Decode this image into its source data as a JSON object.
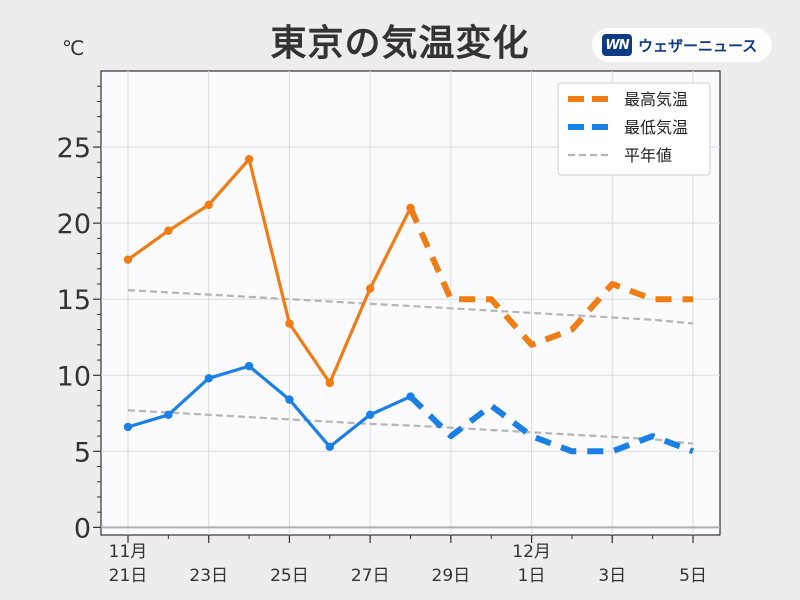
{
  "title": "東京の気温変化",
  "unit": "℃",
  "brand": {
    "mark": "WN",
    "name": "ウェザーニュース"
  },
  "colors": {
    "high": "#ef7d14",
    "low": "#1a80e6",
    "normal": "#b5b5b5",
    "zero_line": "#b0b0b0"
  },
  "chart_data": {
    "type": "line",
    "title": "東京の気温変化",
    "ylabel": "℃",
    "xlabel": "",
    "x": [
      "11/21",
      "11/22",
      "11/23",
      "11/24",
      "11/25",
      "11/26",
      "11/27",
      "11/28",
      "11/29",
      "11/30",
      "12/1",
      "12/2",
      "12/3",
      "12/4",
      "12/5"
    ],
    "xticks": [
      {
        "label": [
          "11月",
          "21日"
        ],
        "index": 0
      },
      {
        "label": [
          "",
          "23日"
        ],
        "index": 2
      },
      {
        "label": [
          "",
          "25日"
        ],
        "index": 4
      },
      {
        "label": [
          "",
          "27日"
        ],
        "index": 6
      },
      {
        "label": [
          "",
          "29日"
        ],
        "index": 8
      },
      {
        "label": [
          "12月",
          "1日"
        ],
        "index": 10
      },
      {
        "label": [
          "",
          "3日"
        ],
        "index": 12
      },
      {
        "label": [
          "",
          "5日"
        ],
        "index": 14
      }
    ],
    "ylim": [
      -0.5,
      30
    ],
    "yticks": [
      0,
      5,
      10,
      15,
      20,
      25
    ],
    "grid": true,
    "legend_position": "top-right",
    "series": [
      {
        "name": "最高気温",
        "key": "high",
        "values": [
          17.6,
          19.5,
          21.2,
          24.2,
          13.4,
          9.5,
          15.7,
          21.0,
          15.0,
          15.0,
          12.0,
          13.0,
          16.0,
          15.0,
          15.0
        ],
        "observed_until_index": 7
      },
      {
        "name": "最低気温",
        "key": "low",
        "values": [
          6.6,
          7.4,
          9.8,
          10.6,
          8.4,
          5.3,
          7.4,
          8.6,
          6.0,
          8.0,
          6.0,
          5.0,
          5.0,
          6.0,
          5.0
        ],
        "observed_until_index": 7
      },
      {
        "name": "平年値",
        "key": "normal_high",
        "values": [
          15.6,
          15.45,
          15.3,
          15.15,
          15.0,
          14.85,
          14.7,
          14.55,
          14.4,
          14.25,
          14.1,
          13.95,
          13.8,
          13.65,
          13.4
        ]
      },
      {
        "name": "",
        "key": "normal_low",
        "values": [
          7.7,
          7.55,
          7.4,
          7.25,
          7.1,
          6.95,
          6.8,
          6.7,
          6.55,
          6.4,
          6.25,
          6.1,
          5.95,
          5.8,
          5.5
        ]
      }
    ]
  }
}
